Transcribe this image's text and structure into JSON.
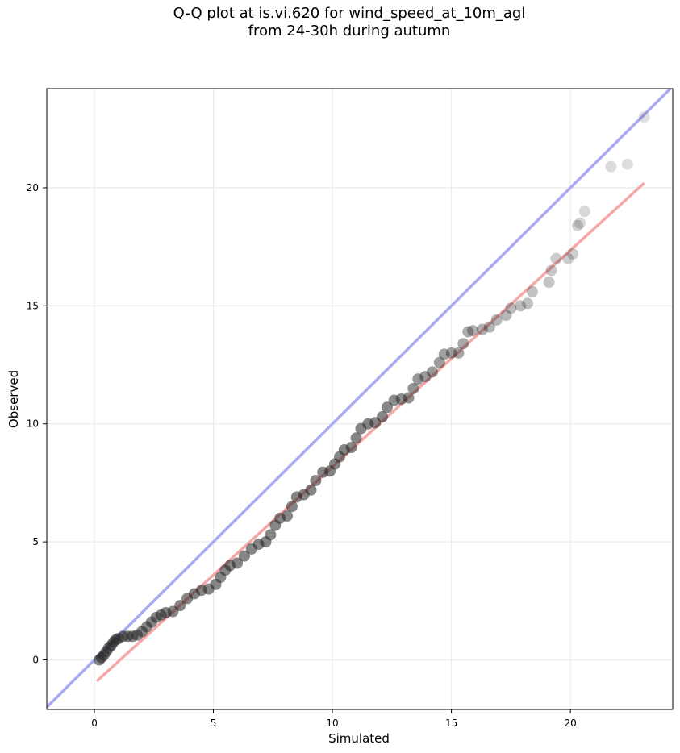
{
  "chart_data": {
    "type": "scatter",
    "title_lines": [
      "Q-Q plot at is.vi.620 for wind_speed_at_10m_agl",
      "from 24-30h during autumn"
    ],
    "xlabel": "Simulated",
    "ylabel": "Observed",
    "xlim": [
      -2,
      24.3
    ],
    "ylim": [
      -2.1,
      24.2
    ],
    "xticks": [
      0,
      5,
      10,
      15,
      20
    ],
    "yticks": [
      0,
      5,
      10,
      15,
      20
    ],
    "grid": true,
    "reference_lines": [
      {
        "name": "1:1 line",
        "color": "#aaaaf2",
        "points": [
          [
            -2,
            -2
          ],
          [
            24.3,
            24.3
          ]
        ]
      },
      {
        "name": "fit line",
        "color": "#f5a8a8",
        "points": [
          [
            0.1,
            -0.9
          ],
          [
            23.1,
            20.2
          ]
        ]
      }
    ],
    "points": [
      [
        0.2,
        0.0
      ],
      [
        0.3,
        0.1
      ],
      [
        0.4,
        0.2
      ],
      [
        0.5,
        0.35
      ],
      [
        0.6,
        0.5
      ],
      [
        0.7,
        0.6
      ],
      [
        0.8,
        0.75
      ],
      [
        0.9,
        0.85
      ],
      [
        1.0,
        0.9
      ],
      [
        1.2,
        1.0
      ],
      [
        1.4,
        1.0
      ],
      [
        1.6,
        1.0
      ],
      [
        1.8,
        1.05
      ],
      [
        2.0,
        1.2
      ],
      [
        2.2,
        1.4
      ],
      [
        2.4,
        1.6
      ],
      [
        2.6,
        1.8
      ],
      [
        2.8,
        1.9
      ],
      [
        3.0,
        2.0
      ],
      [
        3.3,
        2.05
      ],
      [
        3.6,
        2.3
      ],
      [
        3.9,
        2.6
      ],
      [
        4.2,
        2.8
      ],
      [
        4.5,
        2.95
      ],
      [
        4.8,
        3.0
      ],
      [
        5.1,
        3.2
      ],
      [
        5.3,
        3.5
      ],
      [
        5.5,
        3.8
      ],
      [
        5.7,
        4.0
      ],
      [
        6.0,
        4.1
      ],
      [
        6.3,
        4.4
      ],
      [
        6.6,
        4.7
      ],
      [
        6.9,
        4.9
      ],
      [
        7.2,
        5.0
      ],
      [
        7.4,
        5.3
      ],
      [
        7.6,
        5.7
      ],
      [
        7.8,
        6.0
      ],
      [
        8.1,
        6.1
      ],
      [
        8.3,
        6.5
      ],
      [
        8.5,
        6.9
      ],
      [
        8.8,
        7.0
      ],
      [
        9.1,
        7.2
      ],
      [
        9.3,
        7.6
      ],
      [
        9.6,
        7.95
      ],
      [
        9.9,
        8.0
      ],
      [
        10.1,
        8.3
      ],
      [
        10.3,
        8.6
      ],
      [
        10.5,
        8.9
      ],
      [
        10.8,
        9.0
      ],
      [
        11.0,
        9.4
      ],
      [
        11.2,
        9.8
      ],
      [
        11.5,
        10.0
      ],
      [
        11.8,
        10.05
      ],
      [
        12.1,
        10.3
      ],
      [
        12.3,
        10.7
      ],
      [
        12.6,
        11.0
      ],
      [
        12.9,
        11.05
      ],
      [
        13.2,
        11.1
      ],
      [
        13.4,
        11.5
      ],
      [
        13.6,
        11.9
      ],
      [
        13.9,
        12.0
      ],
      [
        14.2,
        12.2
      ],
      [
        14.5,
        12.6
      ],
      [
        14.7,
        12.95
      ],
      [
        15.0,
        13.0
      ],
      [
        15.3,
        13.0
      ],
      [
        15.5,
        13.4
      ],
      [
        15.7,
        13.9
      ],
      [
        15.9,
        13.95
      ],
      [
        16.3,
        14.0
      ],
      [
        16.6,
        14.1
      ],
      [
        16.9,
        14.4
      ],
      [
        17.3,
        14.6
      ],
      [
        17.5,
        14.9
      ],
      [
        17.9,
        15.0
      ],
      [
        18.2,
        15.1
      ],
      [
        18.4,
        15.6
      ],
      [
        19.1,
        16.0
      ],
      [
        19.2,
        16.5
      ],
      [
        19.4,
        17.0
      ],
      [
        19.9,
        17.0
      ],
      [
        20.1,
        17.2
      ],
      [
        20.3,
        18.4
      ],
      [
        20.4,
        18.5
      ],
      [
        20.6,
        19.0
      ],
      [
        21.7,
        20.9
      ],
      [
        22.4,
        21.0
      ],
      [
        23.1,
        23.0
      ]
    ]
  }
}
